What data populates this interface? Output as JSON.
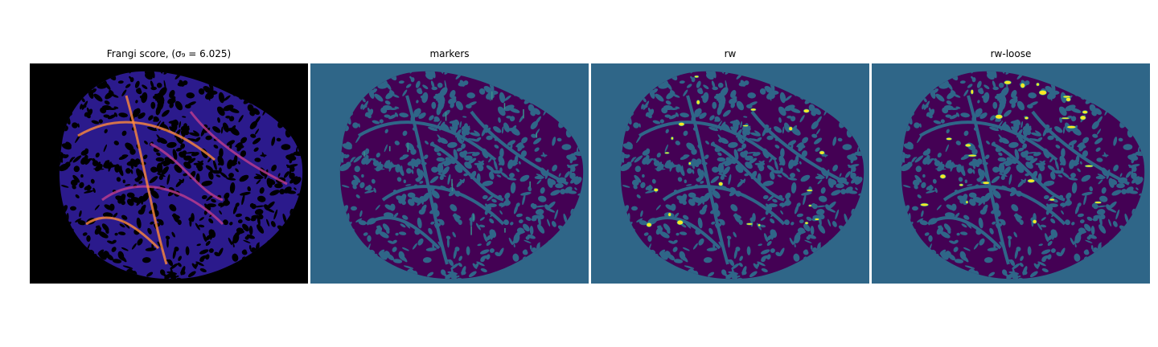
{
  "figure": {
    "panels": [
      {
        "title": "Frangi score, (σ₉ = 6.025)",
        "bg": "#000000",
        "fill": "#2b1a8c",
        "accent": "#ff8a3c",
        "kind": "score"
      },
      {
        "title": "markers",
        "bg": "#2f6688",
        "fill": "#440154",
        "accent": "#3a8f8c",
        "kind": "markers"
      },
      {
        "title": "rw",
        "bg": "#2f6688",
        "fill": "#440154",
        "accent": "#fde725",
        "kind": "labels"
      },
      {
        "title": "rw-loose",
        "bg": "#2f6688",
        "fill": "#440154",
        "accent": "#fde725",
        "kind": "labels"
      }
    ]
  }
}
